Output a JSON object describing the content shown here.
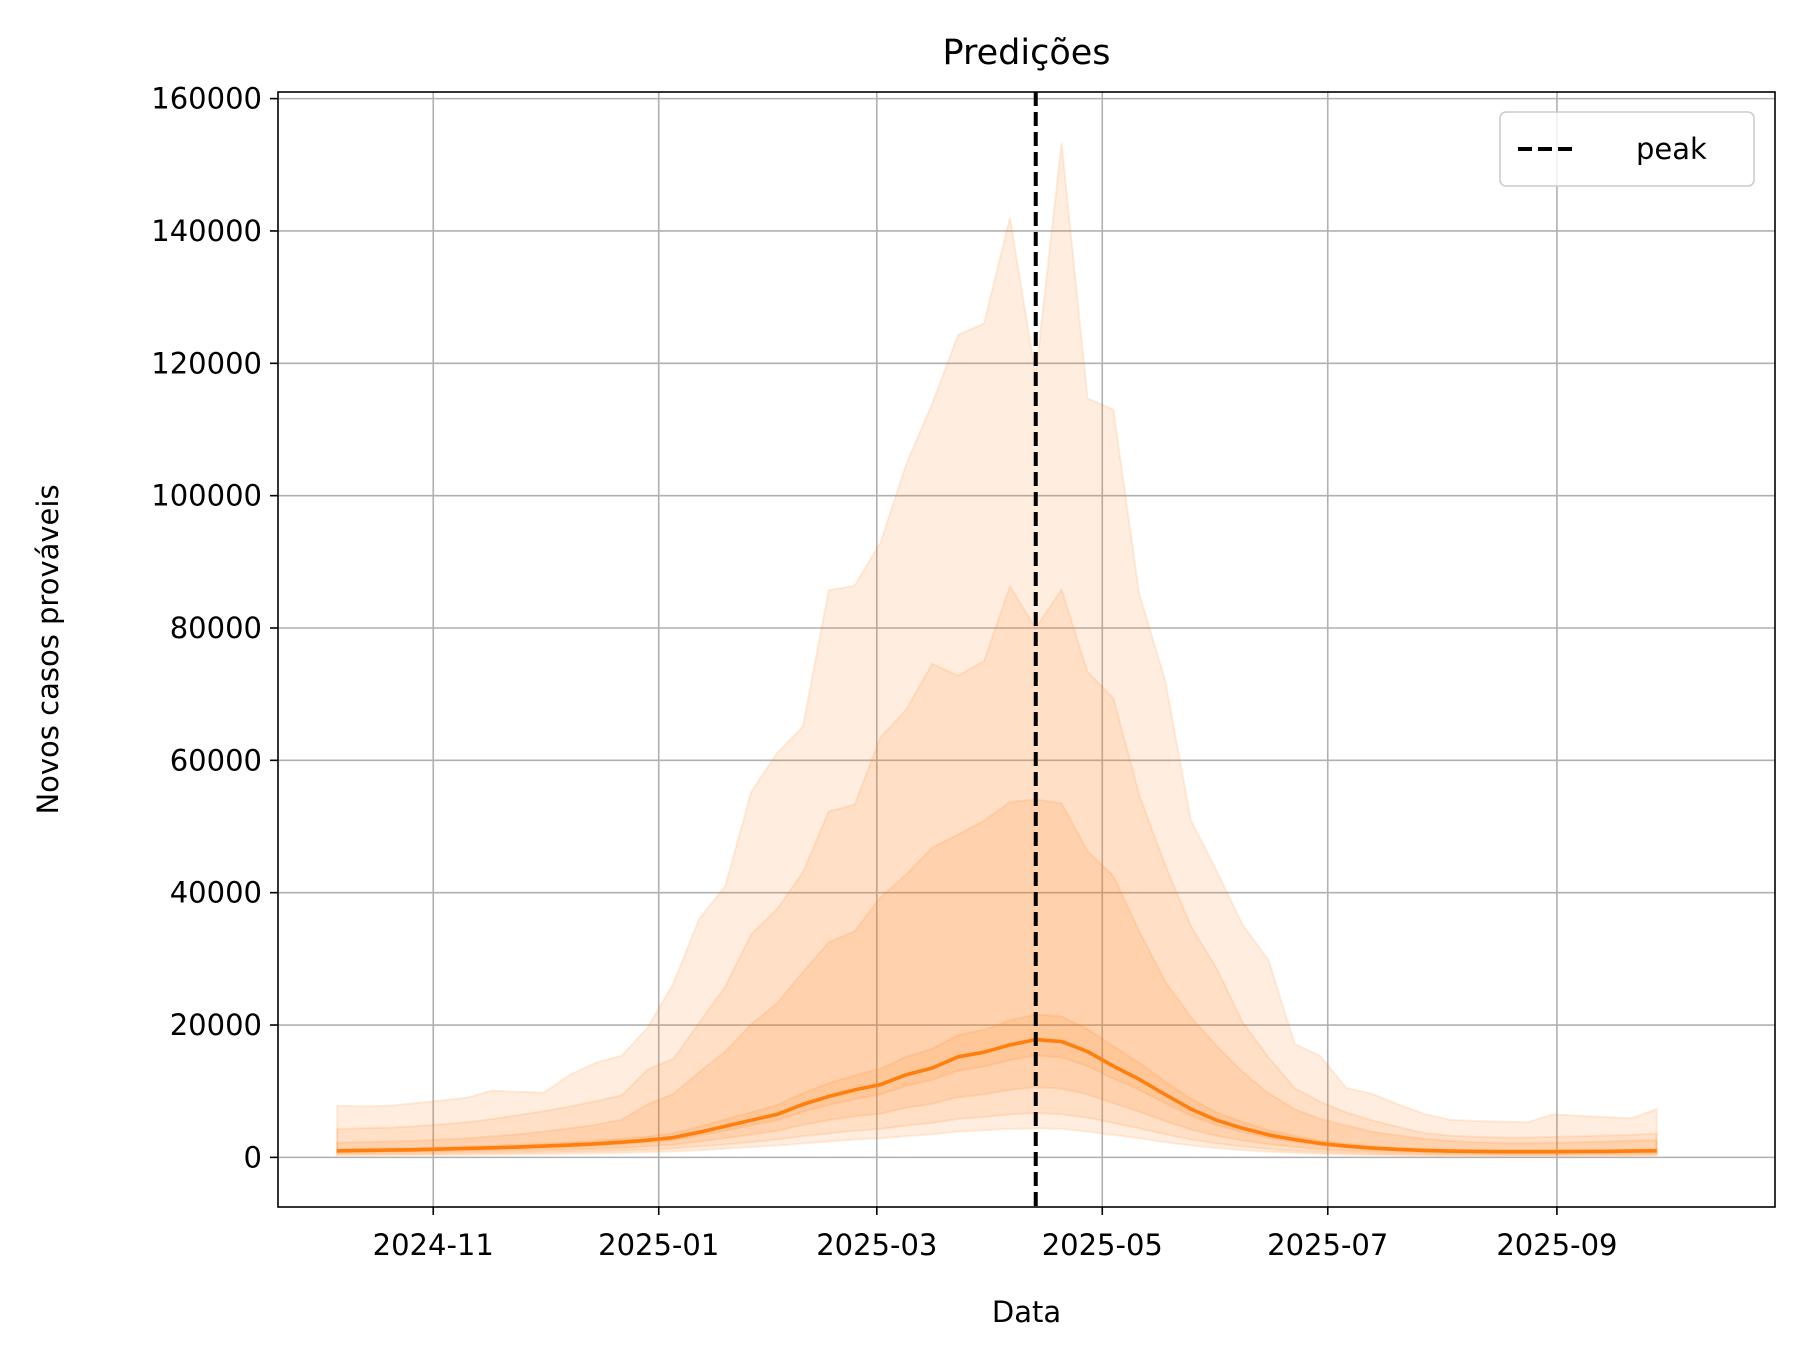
{
  "chart_data": {
    "type": "line",
    "title": "Predições",
    "xlabel": "Data",
    "ylabel": "Novos casos prováveis",
    "xlim": [
      "2024-09-20",
      "2025-10-30"
    ],
    "ylim": [
      -7500,
      161000
    ],
    "x_ticks": [
      "2024-11-01",
      "2025-01-01",
      "2025-03-01",
      "2025-05-01",
      "2025-07-01",
      "2025-09-01"
    ],
    "x_tick_labels": [
      "2024-11",
      "2025-01",
      "2025-03",
      "2025-05",
      "2025-07",
      "2025-09"
    ],
    "y_ticks": [
      0,
      20000,
      40000,
      60000,
      80000,
      100000,
      120000,
      140000,
      160000
    ],
    "y_tick_labels": [
      "0",
      "20000",
      "40000",
      "60000",
      "80000",
      "100000",
      "120000",
      "140000",
      "160000"
    ],
    "grid": true,
    "legend": {
      "position": "top-right",
      "entries": [
        {
          "label": "peak",
          "style": "dashed",
          "color": "#000000"
        }
      ]
    },
    "peak_date": "2025-04-13",
    "line_color": "#ff7f0e",
    "band_color": "#ff7f0e",
    "x": [
      "2024-10-06",
      "2024-10-13",
      "2024-10-20",
      "2024-10-27",
      "2024-11-03",
      "2024-11-10",
      "2024-11-17",
      "2024-11-24",
      "2024-12-01",
      "2024-12-08",
      "2024-12-15",
      "2024-12-22",
      "2024-12-29",
      "2025-01-05",
      "2025-01-12",
      "2025-01-19",
      "2025-01-26",
      "2025-02-02",
      "2025-02-09",
      "2025-02-16",
      "2025-02-23",
      "2025-03-02",
      "2025-03-09",
      "2025-03-16",
      "2025-03-23",
      "2025-03-30",
      "2025-04-06",
      "2025-04-13",
      "2025-04-20",
      "2025-04-27",
      "2025-05-04",
      "2025-05-11",
      "2025-05-18",
      "2025-05-25",
      "2025-06-01",
      "2025-06-08",
      "2025-06-15",
      "2025-06-22",
      "2025-06-29",
      "2025-07-06",
      "2025-07-13",
      "2025-07-20",
      "2025-07-27",
      "2025-08-03",
      "2025-08-10",
      "2025-08-17",
      "2025-08-24",
      "2025-08-31",
      "2025-09-07",
      "2025-09-14",
      "2025-09-21",
      "2025-09-28"
    ],
    "median": [
      1000,
      1050,
      1100,
      1150,
      1250,
      1350,
      1450,
      1550,
      1700,
      1850,
      2050,
      2300,
      2600,
      3000,
      3800,
      4700,
      5600,
      6500,
      8000,
      9200,
      10200,
      11000,
      12500,
      13500,
      15200,
      15900,
      17000,
      17800,
      17500,
      16000,
      13800,
      11800,
      9500,
      7300,
      5600,
      4400,
      3400,
      2700,
      2100,
      1700,
      1400,
      1200,
      1050,
      950,
      900,
      850,
      850,
      850,
      880,
      900,
      950,
      1000
    ],
    "bands": [
      {
        "level": 95,
        "lower": [
          300,
          320,
          340,
          360,
          380,
          400,
          430,
          460,
          500,
          540,
          600,
          680,
          780,
          900,
          1100,
          1300,
          1550,
          1800,
          2100,
          2400,
          2700,
          2900,
          3200,
          3500,
          3900,
          4100,
          4300,
          4400,
          4300,
          3900,
          3400,
          2900,
          2300,
          1800,
          1400,
          1100,
          850,
          680,
          540,
          440,
          370,
          320,
          280,
          260,
          250,
          240,
          240,
          240,
          250,
          260,
          270,
          280
        ],
        "upper": [
          7800,
          7700,
          7800,
          8200,
          8600,
          9000,
          10100,
          9900,
          9800,
          12500,
          14300,
          15400,
          19600,
          26300,
          36100,
          41000,
          55200,
          61100,
          65100,
          85700,
          86400,
          92900,
          104800,
          113900,
          124300,
          126000,
          142000,
          118200,
          153300,
          114700,
          113000,
          85200,
          72100,
          50900,
          43200,
          35100,
          29800,
          17200,
          15300,
          10500,
          9600,
          8000,
          6600,
          5700,
          5500,
          5400,
          5300,
          6500,
          6300,
          6100,
          5900,
          7300
        ]
      },
      {
        "level": 80,
        "lower": [
          450,
          470,
          500,
          530,
          560,
          600,
          640,
          690,
          750,
          820,
          900,
          1000,
          1150,
          1350,
          1650,
          1950,
          2300,
          2700,
          3200,
          3600,
          4000,
          4300,
          4800,
          5200,
          5800,
          6100,
          6500,
          6700,
          6500,
          6000,
          5200,
          4400,
          3500,
          2700,
          2100,
          1650,
          1270,
          1010,
          800,
          650,
          540,
          460,
          410,
          380,
          360,
          350,
          350,
          350,
          360,
          370,
          380,
          400
        ],
        "upper": [
          4300,
          4400,
          4500,
          4700,
          5000,
          5300,
          5800,
          6400,
          7000,
          7700,
          8500,
          9400,
          13300,
          14900,
          20400,
          25800,
          33700,
          37500,
          43100,
          52300,
          53300,
          63500,
          67700,
          74600,
          72800,
          75000,
          86300,
          80000,
          85800,
          73400,
          69400,
          54800,
          44200,
          34900,
          28500,
          20400,
          15100,
          10500,
          8400,
          6800,
          5600,
          4600,
          3700,
          3300,
          3100,
          3000,
          3000,
          3100,
          3200,
          3300,
          3400,
          3600
        ]
      },
      {
        "level": 50,
        "lower": [
          650,
          690,
          720,
          760,
          800,
          860,
          920,
          990,
          1080,
          1170,
          1300,
          1460,
          1660,
          1920,
          2400,
          2900,
          3450,
          4000,
          4900,
          5600,
          6200,
          6600,
          7500,
          8100,
          9100,
          9500,
          10200,
          10600,
          10400,
          9500,
          8200,
          6900,
          5500,
          4200,
          3250,
          2550,
          1980,
          1580,
          1230,
          1000,
          820,
          700,
          620,
          560,
          530,
          500,
          500,
          500,
          520,
          530,
          560,
          590
        ],
        "upper": [
          2200,
          2300,
          2400,
          2500,
          2700,
          2900,
          3200,
          3500,
          3900,
          4400,
          4900,
          5700,
          8000,
          9600,
          12900,
          16000,
          20100,
          23300,
          28000,
          32500,
          34200,
          39300,
          42800,
          46800,
          48800,
          50900,
          53700,
          54100,
          53500,
          46300,
          42500,
          34200,
          26600,
          21200,
          16800,
          12900,
          9700,
          7300,
          5800,
          4800,
          3900,
          3300,
          2800,
          2500,
          2300,
          2200,
          2200,
          2200,
          2300,
          2400,
          2500,
          2600
        ]
      },
      {
        "level": 20,
        "lower": [
          850,
          890,
          940,
          990,
          1080,
          1160,
          1250,
          1340,
          1470,
          1600,
          1780,
          2000,
          2260,
          2600,
          3300,
          4050,
          4850,
          5600,
          6900,
          7950,
          8800,
          9500,
          10800,
          11700,
          13100,
          13700,
          14700,
          15400,
          15100,
          13800,
          11900,
          10200,
          8200,
          6300,
          4850,
          3800,
          2940,
          2330,
          1820,
          1470,
          1210,
          1040,
          910,
          820,
          780,
          740,
          740,
          740,
          760,
          780,
          820,
          860
        ],
        "upper": [
          1200,
          1260,
          1330,
          1400,
          1520,
          1640,
          1760,
          1890,
          2070,
          2260,
          2500,
          2800,
          3160,
          3650,
          4630,
          5720,
          6810,
          7900,
          9730,
          11200,
          12400,
          13400,
          15200,
          16400,
          18500,
          19300,
          20700,
          21600,
          21300,
          19400,
          16800,
          14300,
          11500,
          8860,
          6800,
          5350,
          4130,
          3280,
          2550,
          2070,
          1700,
          1460,
          1280,
          1150,
          1090,
          1030,
          1030,
          1030,
          1070,
          1090,
          1150,
          1220
        ]
      },
      {
        "level": 95,
        "note_hidden": true,
        "lower": [],
        "upper": []
      }
    ]
  }
}
